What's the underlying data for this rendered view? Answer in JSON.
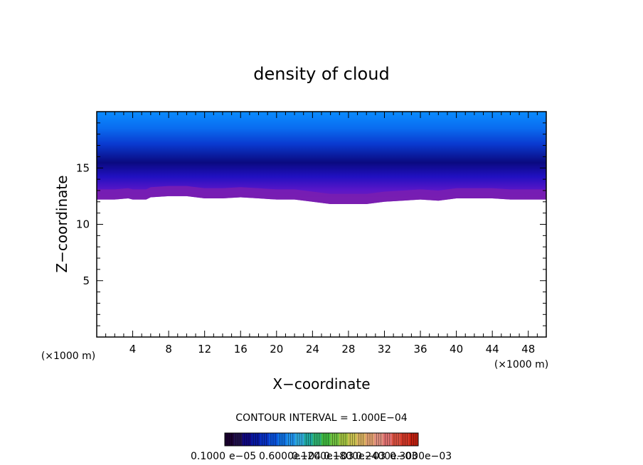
{
  "chart_data": {
    "type": "heatmap",
    "title": "density of cloud",
    "xlabel": "X−coordinate",
    "ylabel": "Z−coordinate",
    "x_unit_left": "(×1000 m)",
    "x_unit_right": "(×1000 m)",
    "xlim": [
      0,
      50
    ],
    "ylim": [
      0,
      20
    ],
    "x_ticks": [
      4,
      8,
      12,
      16,
      20,
      24,
      28,
      32,
      36,
      40,
      44,
      48
    ],
    "y_ticks": [
      5,
      10,
      15
    ],
    "contour_interval_label": "CONTOUR INTERVAL = 1.000E−04",
    "colorbar_labels": [
      "0.1000",
      "e−05",
      "0.6000e−04",
      "0.1200e−03",
      "0.1800e−03",
      "0.2400e−03",
      "0.3000e−03"
    ],
    "cloud_base_km": [
      [
        0,
        12.2
      ],
      [
        2,
        12.2
      ],
      [
        3.5,
        12.3
      ],
      [
        4,
        12.2
      ],
      [
        5.5,
        12.2
      ],
      [
        6,
        12.4
      ],
      [
        8,
        12.5
      ],
      [
        10,
        12.5
      ],
      [
        12,
        12.3
      ],
      [
        14,
        12.3
      ],
      [
        16,
        12.4
      ],
      [
        18,
        12.3
      ],
      [
        20,
        12.2
      ],
      [
        22,
        12.2
      ],
      [
        24,
        12.0
      ],
      [
        26,
        11.8
      ],
      [
        28,
        11.8
      ],
      [
        30,
        11.8
      ],
      [
        32,
        12.0
      ],
      [
        34,
        12.1
      ],
      [
        36,
        12.2
      ],
      [
        38,
        12.1
      ],
      [
        40,
        12.3
      ],
      [
        42,
        12.3
      ],
      [
        44,
        12.3
      ],
      [
        46,
        12.2
      ],
      [
        48,
        12.2
      ],
      [
        50,
        12.2
      ]
    ],
    "cloud_top_km": [
      [
        0,
        19.3
      ],
      [
        5,
        19.3
      ],
      [
        10,
        19.6
      ],
      [
        14,
        19.5
      ],
      [
        20,
        19.3
      ],
      [
        26,
        19.1
      ],
      [
        32,
        19.2
      ],
      [
        38,
        19.4
      ],
      [
        40,
        19.2
      ],
      [
        44,
        19.3
      ],
      [
        48,
        19.4
      ],
      [
        50,
        19.5
      ]
    ],
    "core_km": [
      [
        0,
        13.7
      ],
      [
        6,
        13.8
      ],
      [
        12,
        14.2
      ],
      [
        18,
        13.9
      ],
      [
        24,
        13.6
      ],
      [
        28,
        13.4
      ],
      [
        32,
        13.6
      ],
      [
        38,
        13.9
      ],
      [
        42,
        14.1
      ],
      [
        46,
        14.0
      ],
      [
        50,
        13.9
      ]
    ]
  }
}
